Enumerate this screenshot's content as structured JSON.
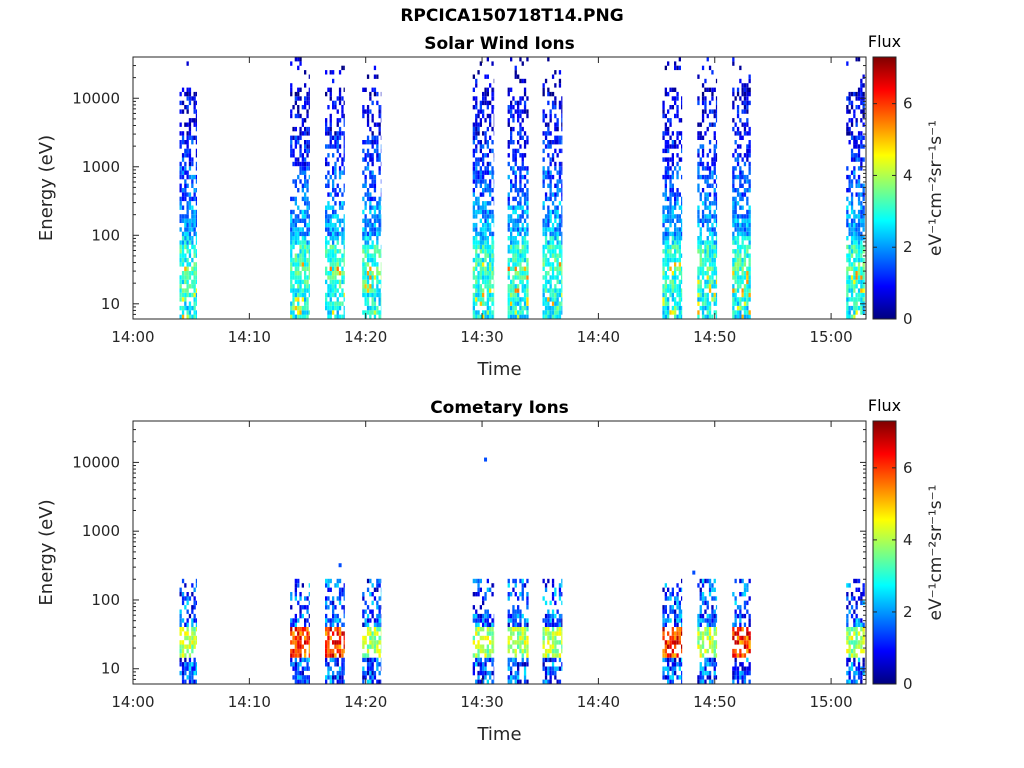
{
  "figure": {
    "title": "RPCICA150718T14.PNG"
  },
  "colormap": {
    "name": "jet",
    "stops": [
      "#00007f",
      "#0000ff",
      "#007fff",
      "#00ffff",
      "#7fff7f",
      "#ffff00",
      "#ff7f00",
      "#ff0000",
      "#7f0000"
    ],
    "background": "#ffffff"
  },
  "chart_data": [
    {
      "type": "heatmap",
      "title": "Solar Wind Ions",
      "xlabel": "Time",
      "ylabel": "Energy (eV)",
      "xlim": [
        "14:00",
        "15:03"
      ],
      "xticks": [
        "14:00",
        "14:10",
        "14:20",
        "14:30",
        "14:40",
        "14:50",
        "15:00"
      ],
      "yscale": "log",
      "ylim": [
        6,
        40000
      ],
      "yticks": [
        10,
        100,
        1000,
        10000
      ],
      "ytick_labels": [
        "10",
        "100",
        "1000",
        "10000"
      ],
      "colorbar": {
        "label": "Flux",
        "units": "eV⁻¹cm⁻²sr⁻¹s⁻¹",
        "range": [
          0,
          7.3
        ],
        "ticks": [
          0,
          2,
          4,
          6
        ]
      },
      "bursts_minutes": [
        [
          4.0,
          5.5
        ],
        [
          13.5,
          15.2
        ],
        [
          16.5,
          18.2
        ],
        [
          19.7,
          21.3
        ],
        [
          29.2,
          31.0
        ],
        [
          32.2,
          34.0
        ],
        [
          35.2,
          36.9
        ],
        [
          45.5,
          47.2
        ],
        [
          48.5,
          50.2
        ],
        [
          51.5,
          53.1
        ],
        [
          61.3,
          62.9
        ]
      ],
      "flux_by_energy": {
        "energy_eV": [
          7,
          10,
          15,
          25,
          40,
          70,
          100,
          300,
          1000,
          3000,
          10000,
          25000
        ],
        "typical_flux": [
          2.7,
          2.8,
          3.0,
          3.2,
          3.0,
          2.5,
          2.0,
          1.5,
          1.1,
          0.8,
          0.6,
          0.5
        ]
      }
    },
    {
      "type": "heatmap",
      "title": "Cometary Ions",
      "xlabel": "Time",
      "ylabel": "Energy (eV)",
      "xlim": [
        "14:00",
        "15:03"
      ],
      "xticks": [
        "14:00",
        "14:10",
        "14:20",
        "14:30",
        "14:40",
        "14:50",
        "15:00"
      ],
      "yscale": "log",
      "ylim": [
        6,
        40000
      ],
      "yticks": [
        10,
        100,
        1000,
        10000
      ],
      "ytick_labels": [
        "10",
        "100",
        "1000",
        "10000"
      ],
      "colorbar": {
        "label": "Flux",
        "units": "eV⁻¹cm⁻²sr⁻¹s⁻¹",
        "range": [
          0,
          7.3
        ],
        "ticks": [
          0,
          2,
          4,
          6
        ]
      },
      "bursts_minutes": [
        [
          4.0,
          5.5
        ],
        [
          13.5,
          15.2
        ],
        [
          16.5,
          18.2
        ],
        [
          19.7,
          21.3
        ],
        [
          29.2,
          31.0
        ],
        [
          32.2,
          34.0
        ],
        [
          35.2,
          36.9
        ],
        [
          45.5,
          47.2
        ],
        [
          48.5,
          50.2
        ],
        [
          51.5,
          53.1
        ],
        [
          61.3,
          62.9
        ]
      ],
      "max_energy_eV": 200,
      "peak_flux_energy_eV": [
        15,
        40
      ],
      "peak_flux": 7.0,
      "isolated_points": [
        {
          "minute": 30.3,
          "energy_eV": 11000
        },
        {
          "minute": 17.8,
          "energy_eV": 320
        },
        {
          "minute": 48.2,
          "energy_eV": 250
        }
      ]
    }
  ]
}
